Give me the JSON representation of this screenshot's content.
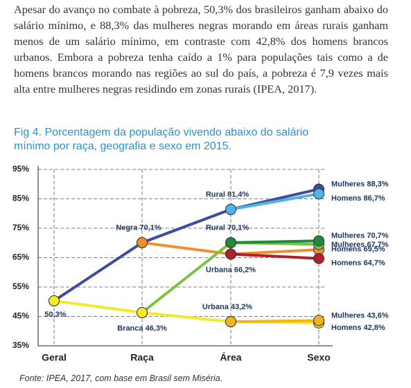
{
  "paragraph": "Apesar do avanço no combate à pobreza, 50,3% dos brasileiros ganham abaixo do salário mínimo, e 88,3% das mulheres negras morando em áreas rurais ganham menos de um salário mínimo, em contraste com 42,8% dos homens brancos urbanos. Embora a pobreza tenha caído a 1% para populações tais como a de homens brancos morando nas regiões ao sul do país, a pobreza é 7,9 vezes mais alta entre mulheres negras residindo em zonas rurais (IPEA, 2017).",
  "chart_data": {
    "type": "line",
    "title": "Fig 4. Porcentagem da população vivendo abaixo do salário mínimo por raça, geografia e sexo em 2015.",
    "categories": [
      "Geral",
      "Raça",
      "Área",
      "Sexo"
    ],
    "ylim": [
      35,
      95
    ],
    "yticks": [
      {
        "value": 35,
        "label": "35%"
      },
      {
        "value": 45,
        "label": "45%"
      },
      {
        "value": 55,
        "label": "55%"
      },
      {
        "value": 65,
        "label": "65%"
      },
      {
        "value": 75,
        "label": "75%"
      },
      {
        "value": 85,
        "label": "85%"
      },
      {
        "value": 95,
        "label": "95%"
      }
    ],
    "grid": true,
    "series": [
      {
        "color": "#3f4c9e",
        "values": [
          50.3,
          70.1,
          81.4,
          88.3
        ],
        "value_labels": [
          "50,3%",
          "Negra 70,1%",
          "Rural 81,4%",
          "Mulheres 88,3%"
        ]
      },
      {
        "color": "#4fb3e8",
        "values": [
          null,
          null,
          81.4,
          86.7
        ],
        "value_labels": [
          null,
          null,
          null,
          "Homens 86,7%"
        ]
      },
      {
        "color": "#ef8f2f",
        "values": [
          null,
          70.1,
          66.2,
          67.7
        ],
        "value_labels": [
          null,
          null,
          "Urbana 66,2%",
          "Mulheres 67,7%"
        ]
      },
      {
        "color": "#b0202a",
        "values": [
          null,
          null,
          66.2,
          64.7
        ],
        "value_labels": [
          null,
          null,
          null,
          "Homens 64,7%"
        ]
      },
      {
        "color": "#7cc242",
        "values": [
          null,
          46.3,
          70.1,
          69.5
        ],
        "value_labels": [
          null,
          "Branca 46,3%",
          "Rural 70,1%",
          "Homens 69,5%"
        ]
      },
      {
        "color": "#1f8a3a",
        "values": [
          null,
          null,
          70.1,
          70.7
        ],
        "value_labels": [
          null,
          null,
          null,
          "Mulheres 70,7%"
        ]
      },
      {
        "color": "#f2ea2a",
        "values": [
          50.3,
          46.3,
          43.2,
          42.8
        ],
        "value_labels": [
          null,
          null,
          "Urbana 43,2%",
          "Homens 42,8%"
        ]
      },
      {
        "color": "#f2b61a",
        "values": [
          null,
          null,
          43.2,
          43.6
        ],
        "value_labels": [
          null,
          null,
          null,
          "Mulheres 43,6%"
        ]
      }
    ]
  },
  "source": "Fonte: IPEA, 2017, com base em Brasil sem Miséria."
}
